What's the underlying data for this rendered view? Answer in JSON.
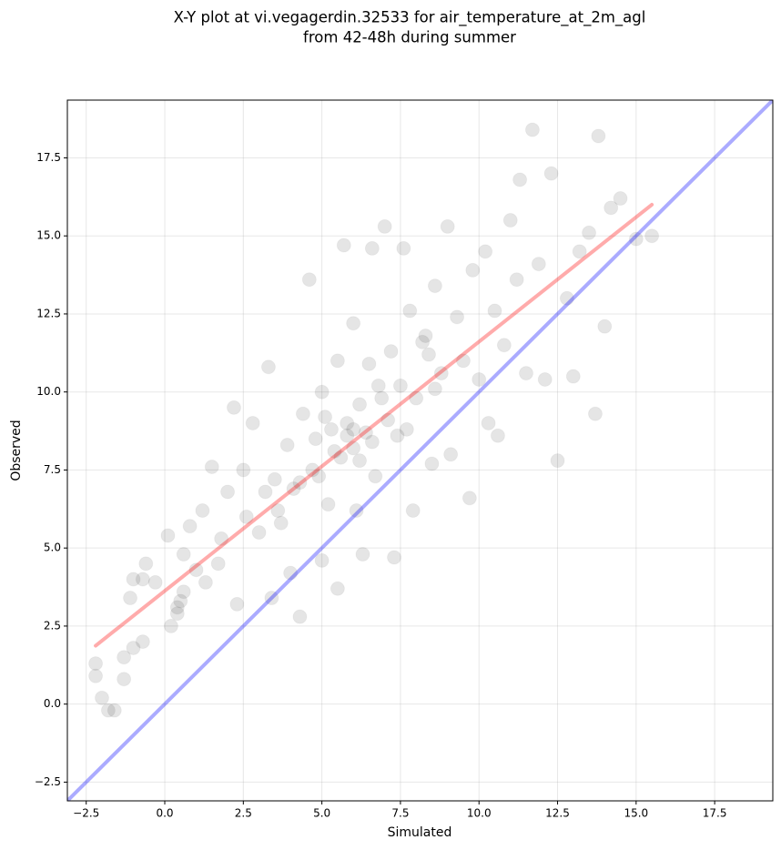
{
  "chart_data": {
    "type": "scatter",
    "title": [
      "X-Y plot at vi.vegagerdin.32533 for air_temperature_at_2m_agl",
      "from 42-48h during summer"
    ],
    "xlabel": "Simulated",
    "ylabel": "Observed",
    "xlim": [
      -3.1,
      19.35
    ],
    "ylim": [
      -3.1,
      19.35
    ],
    "xticks": [
      {
        "value": -2.5,
        "label": "−2.5"
      },
      {
        "value": 0,
        "label": "0.0"
      },
      {
        "value": 2.5,
        "label": "2.5"
      },
      {
        "value": 5,
        "label": "5.0"
      },
      {
        "value": 7.5,
        "label": "7.5"
      },
      {
        "value": 10,
        "label": "10.0"
      },
      {
        "value": 12.5,
        "label": "12.5"
      },
      {
        "value": 15,
        "label": "15.0"
      },
      {
        "value": 17.5,
        "label": "17.5"
      }
    ],
    "yticks": [
      {
        "value": -2.5,
        "label": "−2.5"
      },
      {
        "value": 0,
        "label": "0.0"
      },
      {
        "value": 2.5,
        "label": "2.5"
      },
      {
        "value": 5,
        "label": "5.0"
      },
      {
        "value": 7.5,
        "label": "7.5"
      },
      {
        "value": 10,
        "label": "10.0"
      },
      {
        "value": 12.5,
        "label": "12.5"
      },
      {
        "value": 15,
        "label": "15.0"
      },
      {
        "value": 17.5,
        "label": "17.5"
      }
    ],
    "grid": true,
    "points": {
      "color": "#000000",
      "x": [
        -2.2,
        -2.2,
        -2.0,
        -1.8,
        -1.6,
        -1.3,
        -1.3,
        -1.0,
        -0.7,
        -1.1,
        -1.0,
        -0.7,
        -0.6,
        -0.3,
        0.1,
        0.2,
        0.4,
        0.5,
        0.6,
        0.8,
        1.0,
        1.2,
        1.3,
        1.5,
        1.7,
        1.8,
        2.0,
        2.2,
        2.3,
        2.5,
        2.6,
        2.8,
        3.0,
        3.2,
        3.3,
        3.4,
        3.5,
        3.7,
        3.9,
        4.0,
        4.1,
        4.3,
        4.4,
        4.6,
        4.7,
        4.8,
        5.0,
        5.0,
        5.2,
        5.3,
        5.5,
        5.5,
        5.6,
        5.7,
        5.8,
        6.0,
        6.0,
        6.1,
        6.2,
        6.3,
        6.4,
        6.5,
        6.6,
        6.7,
        6.9,
        7.0,
        7.2,
        7.3,
        7.4,
        7.5,
        7.6,
        7.8,
        7.9,
        8.0,
        8.2,
        8.4,
        8.5,
        8.6,
        8.8,
        9.0,
        9.1,
        9.3,
        9.5,
        9.7,
        9.8,
        10.0,
        10.2,
        10.3,
        10.5,
        10.6,
        10.8,
        11.0,
        11.2,
        11.3,
        11.5,
        11.7,
        11.9,
        12.1,
        12.3,
        12.5,
        12.8,
        13.0,
        13.2,
        13.5,
        13.7,
        13.8,
        14.0,
        14.2,
        14.5,
        15.0,
        15.5,
        5.8,
        6.2,
        5.4,
        6.6,
        7.1,
        4.9,
        8.3,
        8.6,
        3.6,
        4.3,
        6.8,
        7.7,
        5.1,
        6.0,
        0.6,
        0.4
      ],
      "y": [
        1.3,
        0.9,
        0.2,
        -0.2,
        -0.2,
        0.8,
        1.5,
        1.8,
        2.0,
        3.4,
        4.0,
        4.0,
        4.5,
        3.9,
        5.4,
        2.5,
        3.1,
        3.3,
        4.8,
        5.7,
        4.3,
        6.2,
        3.9,
        7.6,
        4.5,
        5.3,
        6.8,
        9.5,
        3.2,
        7.5,
        6.0,
        9.0,
        5.5,
        6.8,
        10.8,
        3.4,
        7.2,
        5.8,
        8.3,
        4.2,
        6.9,
        2.8,
        9.3,
        13.6,
        7.5,
        8.5,
        4.6,
        10.0,
        6.4,
        8.8,
        11.0,
        3.7,
        7.9,
        14.7,
        9.0,
        8.2,
        12.2,
        6.2,
        9.6,
        4.8,
        8.7,
        10.9,
        14.6,
        7.3,
        9.8,
        15.3,
        11.3,
        4.7,
        8.6,
        10.2,
        14.6,
        12.6,
        6.2,
        9.8,
        11.6,
        11.2,
        7.7,
        13.4,
        10.6,
        15.3,
        8.0,
        12.4,
        11.0,
        6.6,
        13.9,
        10.4,
        14.5,
        9.0,
        12.6,
        8.6,
        11.5,
        15.5,
        13.6,
        16.8,
        10.6,
        18.4,
        14.1,
        10.4,
        17.0,
        7.8,
        13.0,
        10.5,
        14.5,
        15.1,
        9.3,
        18.2,
        12.1,
        15.9,
        16.2,
        14.9,
        15.0,
        8.6,
        7.8,
        8.1,
        8.4,
        9.1,
        7.3,
        11.8,
        10.1,
        6.2,
        7.1,
        10.2,
        8.8,
        9.2,
        8.8,
        3.6,
        2.9
      ]
    },
    "lines": [
      {
        "color": "#ff0000",
        "x": [
          -2.2,
          15.5
        ],
        "y": [
          1.87,
          16.0
        ]
      },
      {
        "color": "#0000ff",
        "x": [
          -3.1,
          19.35
        ],
        "y": [
          -3.1,
          19.35
        ]
      }
    ]
  }
}
